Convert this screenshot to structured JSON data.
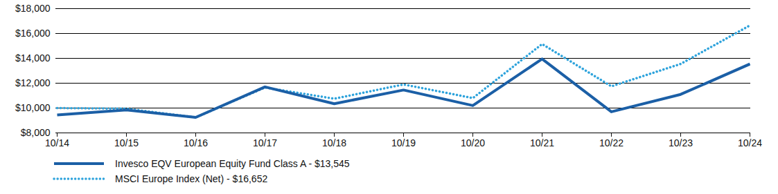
{
  "chart_data": {
    "type": "line",
    "x": [
      "10/14",
      "10/15",
      "10/16",
      "10/17",
      "10/18",
      "10/19",
      "10/20",
      "10/21",
      "10/22",
      "10/23",
      "10/24"
    ],
    "series": [
      {
        "name": "Invesco EQV European Equity Fund Class A - $13,545",
        "color": "#1b5fa6",
        "line_style": "solid",
        "values": [
          9450,
          9850,
          9250,
          11700,
          10350,
          11450,
          10200,
          13950,
          9700,
          11100,
          13545
        ]
      },
      {
        "name": "MSCI Europe Index (Net) - $16,652",
        "color": "#2ea3dc",
        "line_style": "dotted",
        "values": [
          10000,
          9950,
          9250,
          11650,
          10750,
          11900,
          10800,
          15150,
          11750,
          13550,
          16652
        ]
      }
    ],
    "ylim": [
      8000,
      18000
    ],
    "yticks": [
      {
        "value": 8000,
        "label": "$8,000"
      },
      {
        "value": 10000,
        "label": "$10,000"
      },
      {
        "value": 12000,
        "label": "$12,000"
      },
      {
        "value": 14000,
        "label": "$14,000"
      },
      {
        "value": 16000,
        "label": "$16,000"
      },
      {
        "value": 18000,
        "label": "$18,000"
      }
    ],
    "grid": true,
    "legend": "bottom-left"
  }
}
